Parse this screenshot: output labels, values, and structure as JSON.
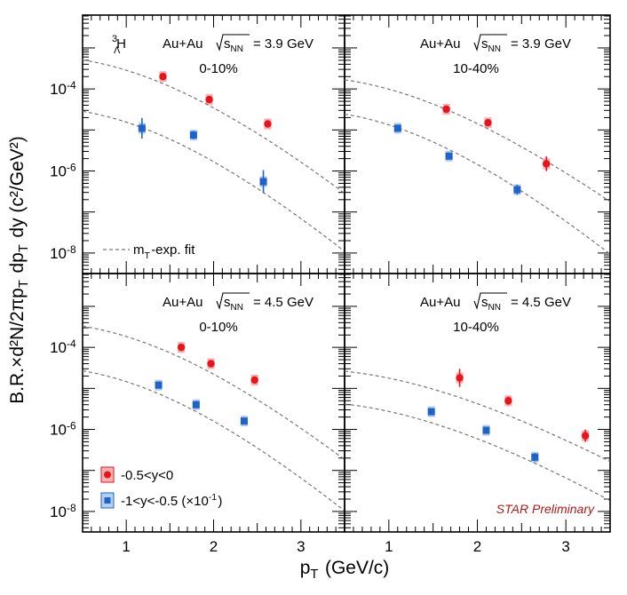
{
  "figure": {
    "y_axis_title": "B.R.×d²N/2πp_T dp_T dy (c²/GeV²)",
    "x_axis_title": "p_T (GeV/c)",
    "particle": "³_ΛH",
    "fit_legend": "m_T-exp. fit",
    "preliminary": "STAR Preliminary",
    "x_ticks": [
      "1",
      "2",
      "3"
    ],
    "y_ticks": [
      "10^-4",
      "10^-6",
      "10^-8"
    ],
    "legend": [
      {
        "label": "-0.5<y<0",
        "color": "#e8141b"
      },
      {
        "label": "-1<y<-0.5 (×10^-1)",
        "color": "#1e64c8"
      }
    ],
    "colors": {
      "red": "#e8141b",
      "blue": "#1e64c8",
      "fit": "#777777",
      "prelim": "#b01818"
    }
  },
  "chart_data": [
    {
      "type": "scatter",
      "panel": "top-left",
      "system": "Au+Au",
      "energy_label": "= 3.9 GeV",
      "centrality": "0-10%",
      "xlim": [
        0.5,
        3.5
      ],
      "ylim_log10": [
        -8.5,
        -2.2
      ],
      "series": [
        {
          "name": "-0.5<y<0",
          "x": [
            1.42,
            1.95,
            2.62
          ],
          "y": [
            0.0002,
            5.5e-05,
            1.4e-05
          ],
          "err": [
            0.06,
            0.07,
            0.08
          ],
          "fit": {
            "ampl": 0.00062,
            "mass": 2.99,
            "T": 0.21
          }
        },
        {
          "name": "-1<y<-0.5 (×10^-1)",
          "x": [
            1.18,
            1.77,
            2.57
          ],
          "y": [
            1.1e-05,
            7.5e-06,
            5.5e-07
          ],
          "err": [
            0.25,
            0.1,
            0.28
          ],
          "fit": {
            "ampl": 3.5e-05,
            "mass": 2.99,
            "T": 0.2
          }
        }
      ]
    },
    {
      "type": "scatter",
      "panel": "top-right",
      "system": "Au+Au",
      "energy_label": "= 3.9 GeV",
      "centrality": "10-40%",
      "xlim": [
        0.5,
        3.5
      ],
      "ylim_log10": [
        -8.5,
        -2.2
      ],
      "series": [
        {
          "name": "-0.5<y<0",
          "x": [
            1.65,
            2.12,
            2.78
          ],
          "y": [
            3.2e-05,
            1.5e-05,
            1.5e-06
          ],
          "err": [
            0.08,
            0.07,
            0.18
          ],
          "fit": {
            "ampl": 0.0002,
            "mass": 2.99,
            "T": 0.23
          }
        },
        {
          "name": "-1<y<-0.5 (×10^-1)",
          "x": [
            1.1,
            1.68,
            2.45
          ],
          "y": [
            1.1e-05,
            2.3e-06,
            3.5e-07
          ],
          "err": [
            0.07,
            0.08,
            0.12
          ],
          "fit": {
            "ampl": 3e-05,
            "mass": 2.99,
            "T": 0.2
          }
        }
      ]
    },
    {
      "type": "scatter",
      "panel": "bottom-left",
      "system": "Au+Au",
      "energy_label": "= 4.5 GeV",
      "centrality": "0-10%",
      "xlim": [
        0.5,
        3.5
      ],
      "ylim_log10": [
        -8.5,
        -2.2
      ],
      "series": [
        {
          "name": "-0.5<y<0",
          "x": [
            1.63,
            1.97,
            2.47
          ],
          "y": [
            0.0001,
            4e-05,
            1.6e-05
          ],
          "err": [
            0.08,
            0.08,
            0.07
          ],
          "fit": {
            "ampl": 0.0004,
            "mass": 2.99,
            "T": 0.21
          }
        },
        {
          "name": "-1<y<-0.5 (×10^-1)",
          "x": [
            1.37,
            1.8,
            2.35
          ],
          "y": [
            1.2e-05,
            4e-06,
            1.6e-06
          ],
          "err": [
            0.06,
            0.09,
            0.07
          ],
          "fit": {
            "ampl": 3.3e-05,
            "mass": 2.99,
            "T": 0.2
          }
        }
      ]
    },
    {
      "type": "scatter",
      "panel": "bottom-right",
      "system": "Au+Au",
      "energy_label": "= 4.5 GeV",
      "centrality": "10-40%",
      "xlim": [
        0.5,
        3.5
      ],
      "ylim_log10": [
        -8.5,
        -2.2
      ],
      "series": [
        {
          "name": "-0.5<y<0",
          "x": [
            1.8,
            2.35,
            3.22
          ],
          "y": [
            1.8e-05,
            5e-06,
            7e-07
          ],
          "err": [
            0.22,
            0.1,
            0.15
          ],
          "fit": {
            "ampl": 3e-05,
            "mass": 2.99,
            "T": 0.31
          }
        },
        {
          "name": "-1<y<-0.5 (×10^-1)",
          "x": [
            1.48,
            2.1,
            2.65
          ],
          "y": [
            2.7e-06,
            9.5e-07,
            2.1e-07
          ],
          "err": [
            0.08,
            0.08,
            0.1
          ],
          "fit": {
            "ampl": 4.8e-06,
            "mass": 2.99,
            "T": 0.29
          }
        }
      ]
    }
  ]
}
